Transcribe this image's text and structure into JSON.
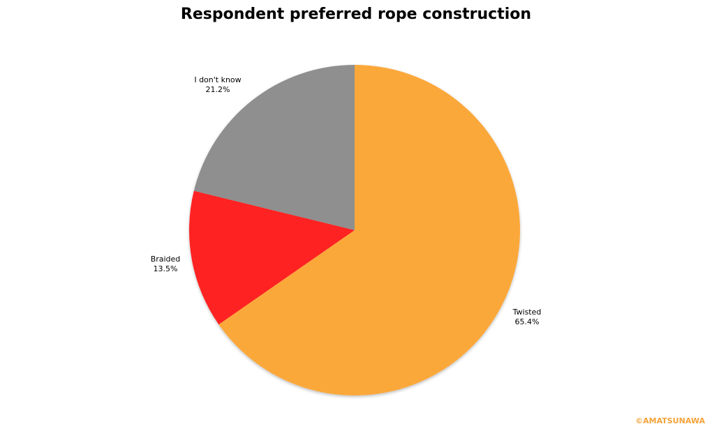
{
  "chart_data": {
    "type": "pie",
    "title": "Respondent preferred rope construction",
    "slices": [
      {
        "label": "Twisted",
        "value": 65.4,
        "value_text": "65.4%",
        "color": "#FBA83B"
      },
      {
        "label": "Braided",
        "value": 13.5,
        "value_text": "13.5%",
        "color": "#FE2020"
      },
      {
        "label": "I don't know",
        "value": 21.2,
        "value_text": "21.2%",
        "color": "#8F8F8F"
      }
    ],
    "start_angle": "12 o'clock",
    "direction": "clockwise",
    "legend": "none (labels beside slices)"
  },
  "copyright": {
    "text": "©AMATSUNAWA",
    "color": "#F5A33A"
  }
}
